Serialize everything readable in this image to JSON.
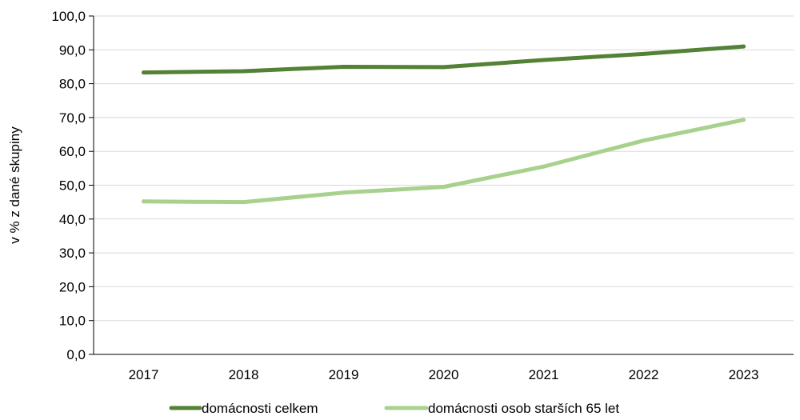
{
  "chart_data": {
    "type": "line",
    "title": "",
    "xlabel": "",
    "ylabel": "v % z dané skupiny",
    "categories": [
      "2017",
      "2018",
      "2019",
      "2020",
      "2021",
      "2022",
      "2023"
    ],
    "ylim": [
      0,
      100
    ],
    "yticks": [
      "0,0",
      "10,0",
      "20,0",
      "30,0",
      "40,0",
      "50,0",
      "60,0",
      "70,0",
      "80,0",
      "90,0",
      "100,0"
    ],
    "grid": "horizontal",
    "legend_position": "bottom",
    "series": [
      {
        "name": "domácnosti celkem",
        "color": "#538135",
        "values": [
          83.3,
          83.7,
          85.0,
          84.9,
          87.0,
          88.8,
          91.0
        ]
      },
      {
        "name": "domácnosti osob starších 65 let",
        "color": "#a9d18e",
        "values": [
          45.2,
          45.0,
          47.8,
          49.5,
          55.5,
          63.2,
          69.3
        ]
      }
    ]
  }
}
